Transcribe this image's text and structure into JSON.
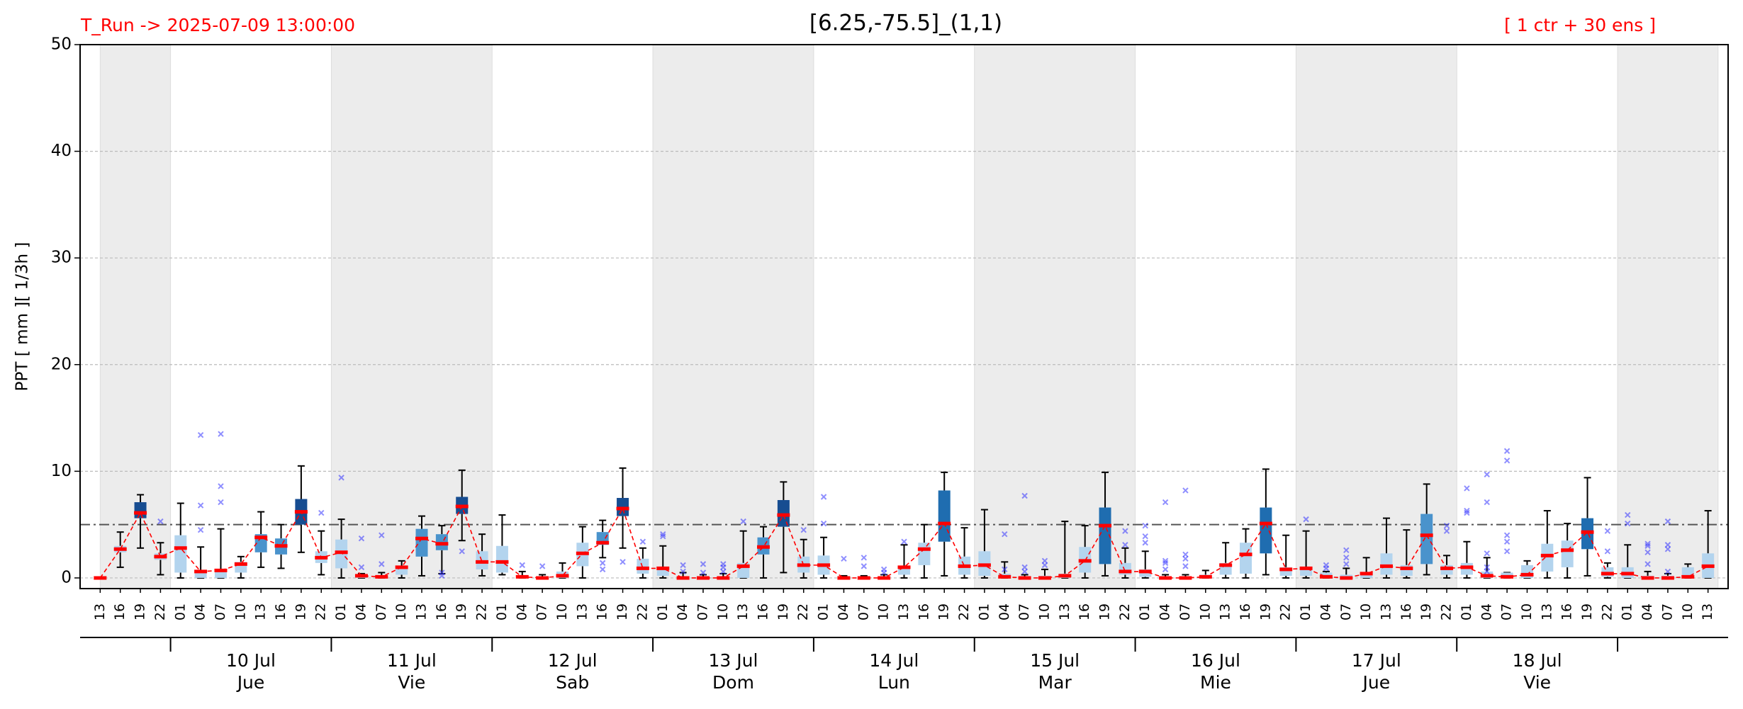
{
  "chart_data": {
    "type": "box",
    "title": "[6.25,-75.5]_(1,1)",
    "run_label": "T_Run -> 2025-07-09  13:00:00",
    "members_label": "[ 1 ctr + 30 ens ]",
    "y_label": "PPT  [ mm ][ 1/3h ]",
    "ylim": [
      -1,
      50
    ],
    "yticks": [
      0,
      10,
      20,
      30,
      40,
      50
    ],
    "grid": true,
    "threshold": 5,
    "median_color": "#ff0000",
    "flier_color": "#3333ff",
    "categories": [
      "13",
      "16",
      "19",
      "22",
      "01",
      "04",
      "07",
      "10",
      "13",
      "16",
      "19",
      "22",
      "01",
      "04",
      "07",
      "10",
      "13",
      "16",
      "19",
      "22",
      "01",
      "04",
      "07",
      "10",
      "13",
      "16",
      "19",
      "22",
      "01",
      "04",
      "07",
      "10",
      "13",
      "16",
      "19",
      "22",
      "01",
      "04",
      "07",
      "10",
      "13",
      "16",
      "19",
      "22",
      "01",
      "04",
      "07",
      "10",
      "13",
      "16",
      "19",
      "22",
      "01",
      "04",
      "07",
      "10",
      "13",
      "16",
      "19",
      "22",
      "01",
      "04",
      "07",
      "10",
      "13",
      "16",
      "19",
      "22",
      "01",
      "04",
      "07",
      "10",
      "13",
      "16",
      "19",
      "22",
      "01",
      "04",
      "07",
      "10",
      "13"
    ],
    "days": [
      {
        "date": "10 Jul",
        "weekday": "Jue"
      },
      {
        "date": "11 Jul",
        "weekday": "Vie"
      },
      {
        "date": "12 Jul",
        "weekday": "Sab"
      },
      {
        "date": "13 Jul",
        "weekday": "Dom"
      },
      {
        "date": "14 Jul",
        "weekday": "Lun"
      },
      {
        "date": "15 Jul",
        "weekday": "Mar"
      },
      {
        "date": "16 Jul",
        "weekday": "Mie"
      },
      {
        "date": "17 Jul",
        "weekday": "Jue"
      },
      {
        "date": "18 Jul",
        "weekday": "Vie"
      }
    ],
    "whishi": [
      0,
      4.3,
      7.8,
      3.3,
      7.0,
      2.9,
      4.6,
      2.0,
      6.2,
      5.0,
      10.5,
      4.4,
      5.5,
      0.4,
      0.5,
      1.6,
      5.8,
      4.9,
      10.1,
      4.1,
      5.9,
      0.6,
      0.3,
      1.4,
      4.8,
      5.4,
      10.3,
      2.8,
      3.0,
      0.5,
      0.3,
      0.4,
      4.4,
      4.8,
      9.0,
      3.6,
      3.8,
      0.2,
      0.2,
      0.3,
      3.1,
      5.0,
      9.9,
      4.7,
      6.4,
      1.5,
      0.3,
      0.8,
      5.3,
      4.9,
      9.9,
      2.8,
      2.5,
      0.3,
      0.3,
      0.7,
      3.3,
      4.6,
      10.2,
      4.0,
      4.4,
      0.6,
      0.9,
      1.9,
      5.6,
      4.5,
      8.8,
      2.1,
      3.4,
      1.9,
      0.5,
      1.6,
      6.3,
      5.1,
      9.4,
      1.4,
      3.1,
      0.6,
      0.4,
      1.3,
      6.3
    ],
    "whislo": [
      0,
      1.0,
      2.8,
      0.3,
      0,
      0,
      0,
      0,
      1.0,
      0.9,
      2.4,
      0.3,
      0,
      0,
      0,
      0,
      0.2,
      0.4,
      3.5,
      0.2,
      0.3,
      0,
      0,
      0,
      0,
      1.9,
      2.8,
      0,
      0,
      0,
      0,
      0,
      0,
      0,
      0.5,
      0,
      0,
      0,
      0,
      0,
      0,
      0,
      0.2,
      0,
      0,
      0,
      0,
      0,
      0,
      0,
      0.2,
      0,
      0,
      0,
      0,
      0,
      0,
      0,
      0.3,
      0,
      0,
      0,
      0,
      0,
      0,
      0,
      0.3,
      0,
      0,
      0,
      0,
      0,
      0,
      0,
      0.2,
      0,
      0,
      0,
      0,
      0,
      0
    ],
    "q1": [
      0,
      2.4,
      5.6,
      1.7,
      0.5,
      0,
      0,
      0.5,
      2.4,
      2.2,
      5.0,
      1.4,
      0.9,
      0,
      0,
      0.3,
      2.0,
      2.6,
      6.0,
      0.8,
      0.5,
      0,
      0,
      0,
      1.1,
      3.1,
      5.8,
      0.4,
      0.2,
      0,
      0,
      0,
      0,
      2.2,
      4.8,
      0.5,
      0.3,
      0,
      0,
      0,
      0.3,
      1.2,
      3.4,
      0.3,
      0.2,
      0,
      0,
      0,
      0,
      0.5,
      1.3,
      0.3,
      0.1,
      0,
      0,
      0,
      0.3,
      0.4,
      2.3,
      0.2,
      0.2,
      0,
      0,
      0,
      0.3,
      0.2,
      1.3,
      0.3,
      0.3,
      0,
      0,
      0,
      0.6,
      1.0,
      2.7,
      0.1,
      0,
      0,
      0,
      0,
      0
    ],
    "q3": [
      0,
      3.0,
      7.1,
      2.3,
      4.0,
      0.7,
      0.8,
      1.5,
      4.1,
      3.7,
      7.4,
      2.5,
      3.6,
      0.2,
      0.2,
      1.0,
      4.6,
      4.1,
      7.6,
      2.5,
      3.0,
      0.2,
      0.1,
      0.6,
      3.3,
      4.3,
      7.5,
      1.8,
      1.0,
      0.1,
      0.1,
      0.1,
      1.4,
      3.8,
      7.3,
      2.0,
      2.1,
      0.1,
      0.1,
      0.1,
      1.1,
      3.3,
      8.2,
      2.0,
      2.5,
      0.4,
      0.1,
      0.2,
      0.4,
      2.9,
      6.6,
      1.4,
      0.8,
      0.1,
      0.1,
      0.3,
      1.4,
      3.3,
      6.6,
      1.0,
      1.0,
      0.5,
      0.3,
      0.5,
      2.3,
      1.2,
      6.0,
      1.2,
      1.4,
      0.6,
      0.5,
      1.2,
      3.2,
      3.5,
      5.6,
      1.0,
      1.0,
      0.2,
      0.2,
      1.0,
      2.3
    ],
    "median": [
      0,
      2.7,
      6.1,
      2.0,
      2.8,
      0.6,
      0.7,
      1.3,
      3.8,
      3.0,
      6.2,
      1.9,
      2.4,
      0.2,
      0.1,
      1.0,
      3.7,
      3.2,
      6.7,
      1.5,
      1.5,
      0.1,
      0,
      0.2,
      2.3,
      3.3,
      6.5,
      0.9,
      0.9,
      0,
      0,
      0,
      1.1,
      2.9,
      5.9,
      1.2,
      1.2,
      0,
      0,
      0,
      1.0,
      2.7,
      5.1,
      1.1,
      1.2,
      0.1,
      0,
      0,
      0.2,
      1.6,
      4.9,
      0.6,
      0.6,
      0,
      0,
      0.1,
      1.2,
      2.2,
      5.1,
      0.8,
      0.9,
      0.1,
      0,
      0.4,
      1.1,
      0.9,
      4.0,
      0.9,
      1.0,
      0.2,
      0.1,
      0.3,
      2.1,
      2.6,
      4.3,
      0.4,
      0.4,
      0,
      0,
      0.1,
      1.1
    ],
    "fliers": [
      [],
      [],
      [],
      [
        5.3
      ],
      [],
      [
        4.5,
        6.8,
        13.4
      ],
      [
        7.1,
        8.6,
        13.5
      ],
      [],
      [],
      [],
      [],
      [
        6.1
      ],
      [
        9.4
      ],
      [
        1.0,
        3.7
      ],
      [
        1.3,
        4.0
      ],
      [],
      [],
      [
        0.2,
        0.5
      ],
      [
        2.5
      ],
      [],
      [],
      [
        1.2
      ],
      [
        1.1
      ],
      [],
      [],
      [
        0.8,
        1.4
      ],
      [
        1.5
      ],
      [
        3.4
      ],
      [
        3.9,
        4.1
      ],
      [
        0.6,
        1.2
      ],
      [
        0.5,
        1.3
      ],
      [
        0.6,
        1.0,
        1.3
      ],
      [
        5.3
      ],
      [],
      [],
      [
        4.5
      ],
      [
        5.1,
        7.6
      ],
      [
        1.8
      ],
      [
        1.1,
        1.9
      ],
      [
        0.5,
        0.8
      ],
      [
        3.4
      ],
      [],
      [],
      [],
      [],
      [
        0.8,
        4.1
      ],
      [
        0.6,
        1.0,
        7.7
      ],
      [
        1.2,
        1.6
      ],
      [],
      [],
      [],
      [
        3.1,
        4.4
      ],
      [
        3.3,
        3.9,
        4.9
      ],
      [
        0.8,
        1.4,
        1.6,
        7.1
      ],
      [
        1.1,
        1.8,
        2.2,
        8.2
      ],
      [],
      [],
      [],
      [],
      [],
      [
        5.5
      ],
      [
        0.9,
        1.2
      ],
      [
        1.3,
        1.9,
        2.6
      ],
      [],
      [],
      [],
      [],
      [
        4.4,
        4.9
      ],
      [
        6.1,
        6.3,
        8.4
      ],
      [
        0.6,
        1.0,
        2.3,
        7.1,
        9.7
      ],
      [
        2.5,
        3.4,
        4.0,
        11.0,
        11.9
      ],
      [],
      [],
      [],
      [],
      [
        2.5,
        4.4
      ],
      [
        5.1,
        5.9
      ],
      [
        1.3,
        2.4,
        3.0,
        3.2
      ],
      [
        0.6,
        2.7,
        3.1,
        5.3
      ],
      [],
      []
    ],
    "box_colors": [
      "#b3d4ee",
      "#b3d4ee",
      "#174d91",
      "#b3d4ee",
      "#b3d4ee",
      "#b3d4ee",
      "#b3d4ee",
      "#b3d4ee",
      "#4a93cc",
      "#4a93cc",
      "#174d91",
      "#b3d4ee",
      "#b3d4ee",
      "#b3d4ee",
      "#b3d4ee",
      "#b3d4ee",
      "#4a93cc",
      "#4a93cc",
      "#174d91",
      "#b3d4ee",
      "#b3d4ee",
      "#b3d4ee",
      "#b3d4ee",
      "#b3d4ee",
      "#b3d4ee",
      "#4a93cc",
      "#174d91",
      "#b3d4ee",
      "#b3d4ee",
      "#b3d4ee",
      "#b3d4ee",
      "#b3d4ee",
      "#b3d4ee",
      "#4a93cc",
      "#174d91",
      "#b3d4ee",
      "#b3d4ee",
      "#b3d4ee",
      "#b3d4ee",
      "#b3d4ee",
      "#b3d4ee",
      "#b3d4ee",
      "#1f6db0",
      "#b3d4ee",
      "#b3d4ee",
      "#b3d4ee",
      "#b3d4ee",
      "#b3d4ee",
      "#b3d4ee",
      "#b3d4ee",
      "#1f6db0",
      "#b3d4ee",
      "#b3d4ee",
      "#b3d4ee",
      "#b3d4ee",
      "#b3d4ee",
      "#b3d4ee",
      "#b3d4ee",
      "#1f6db0",
      "#b3d4ee",
      "#b3d4ee",
      "#b3d4ee",
      "#b3d4ee",
      "#b3d4ee",
      "#b3d4ee",
      "#b3d4ee",
      "#4a93cc",
      "#b3d4ee",
      "#b3d4ee",
      "#b3d4ee",
      "#b3d4ee",
      "#b3d4ee",
      "#b3d4ee",
      "#b3d4ee",
      "#1f6db0",
      "#b3d4ee",
      "#b3d4ee",
      "#b3d4ee",
      "#b3d4ee",
      "#b3d4ee",
      "#b3d4ee"
    ]
  }
}
